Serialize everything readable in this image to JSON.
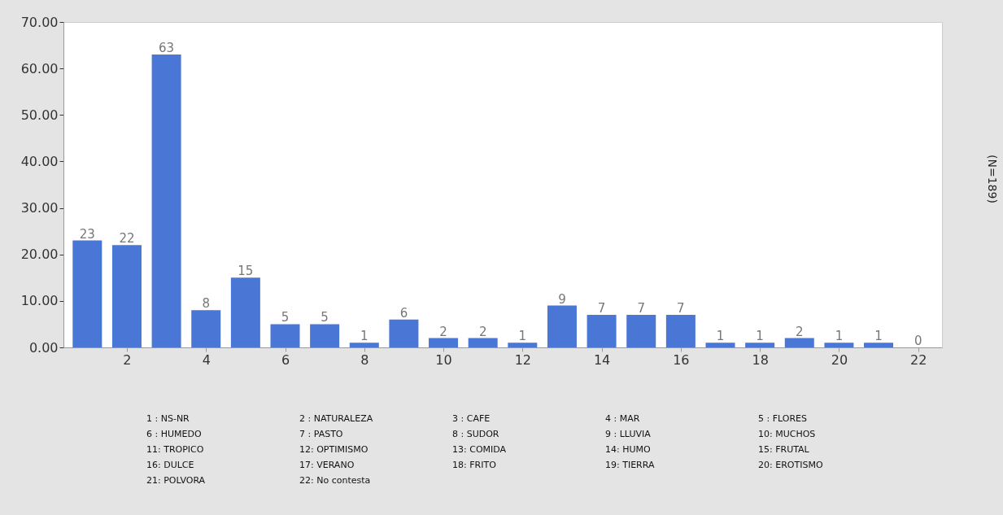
{
  "chart_data": {
    "type": "bar",
    "y2label": "(N=189)",
    "x": [
      1,
      2,
      3,
      4,
      5,
      6,
      7,
      8,
      9,
      10,
      11,
      12,
      13,
      14,
      15,
      16,
      17,
      18,
      19,
      20,
      21,
      22
    ],
    "values": [
      23,
      22,
      63,
      8,
      15,
      5,
      5,
      1,
      6,
      2,
      2,
      1,
      9,
      7,
      7,
      7,
      1,
      1,
      2,
      1,
      1,
      0
    ],
    "color": "#4a76d6",
    "data_labels": true,
    "xlim": [
      0.5,
      22.5
    ],
    "xticks": [
      2,
      4,
      6,
      8,
      10,
      12,
      14,
      16,
      18,
      20,
      22
    ],
    "ylim": [
      0,
      70
    ],
    "yticks": [
      {
        "value": 0,
        "label": "0.00"
      },
      {
        "value": 10,
        "label": "10.00"
      },
      {
        "value": 20,
        "label": "20.00"
      },
      {
        "value": 30,
        "label": "30.00"
      },
      {
        "value": 40,
        "label": "40.00"
      },
      {
        "value": 50,
        "label": "50.00"
      },
      {
        "value": 60,
        "label": "60.00"
      },
      {
        "value": 70,
        "label": "70.00"
      }
    ],
    "grid": false,
    "annotations": [
      "1 :  NS-NR",
      "2 :  NATURALEZA",
      "3 :  CAFE",
      "4 :  MAR",
      "5 :  FLORES",
      "6 :  HUMEDO",
      "7 :  PASTO",
      "8 :  SUDOR",
      "9 :  LLUVIA",
      "10:  MUCHOS",
      "11:  TROPICO",
      "12:  OPTIMISMO",
      "13:  COMIDA",
      "14:  HUMO",
      "15:  FRUTAL",
      "16:  DULCE",
      "17:  VERANO",
      "18:  FRITO",
      "19:  TIERRA",
      "20:  EROTISMO",
      "21:  POLVORA",
      "22:  No contesta"
    ]
  }
}
